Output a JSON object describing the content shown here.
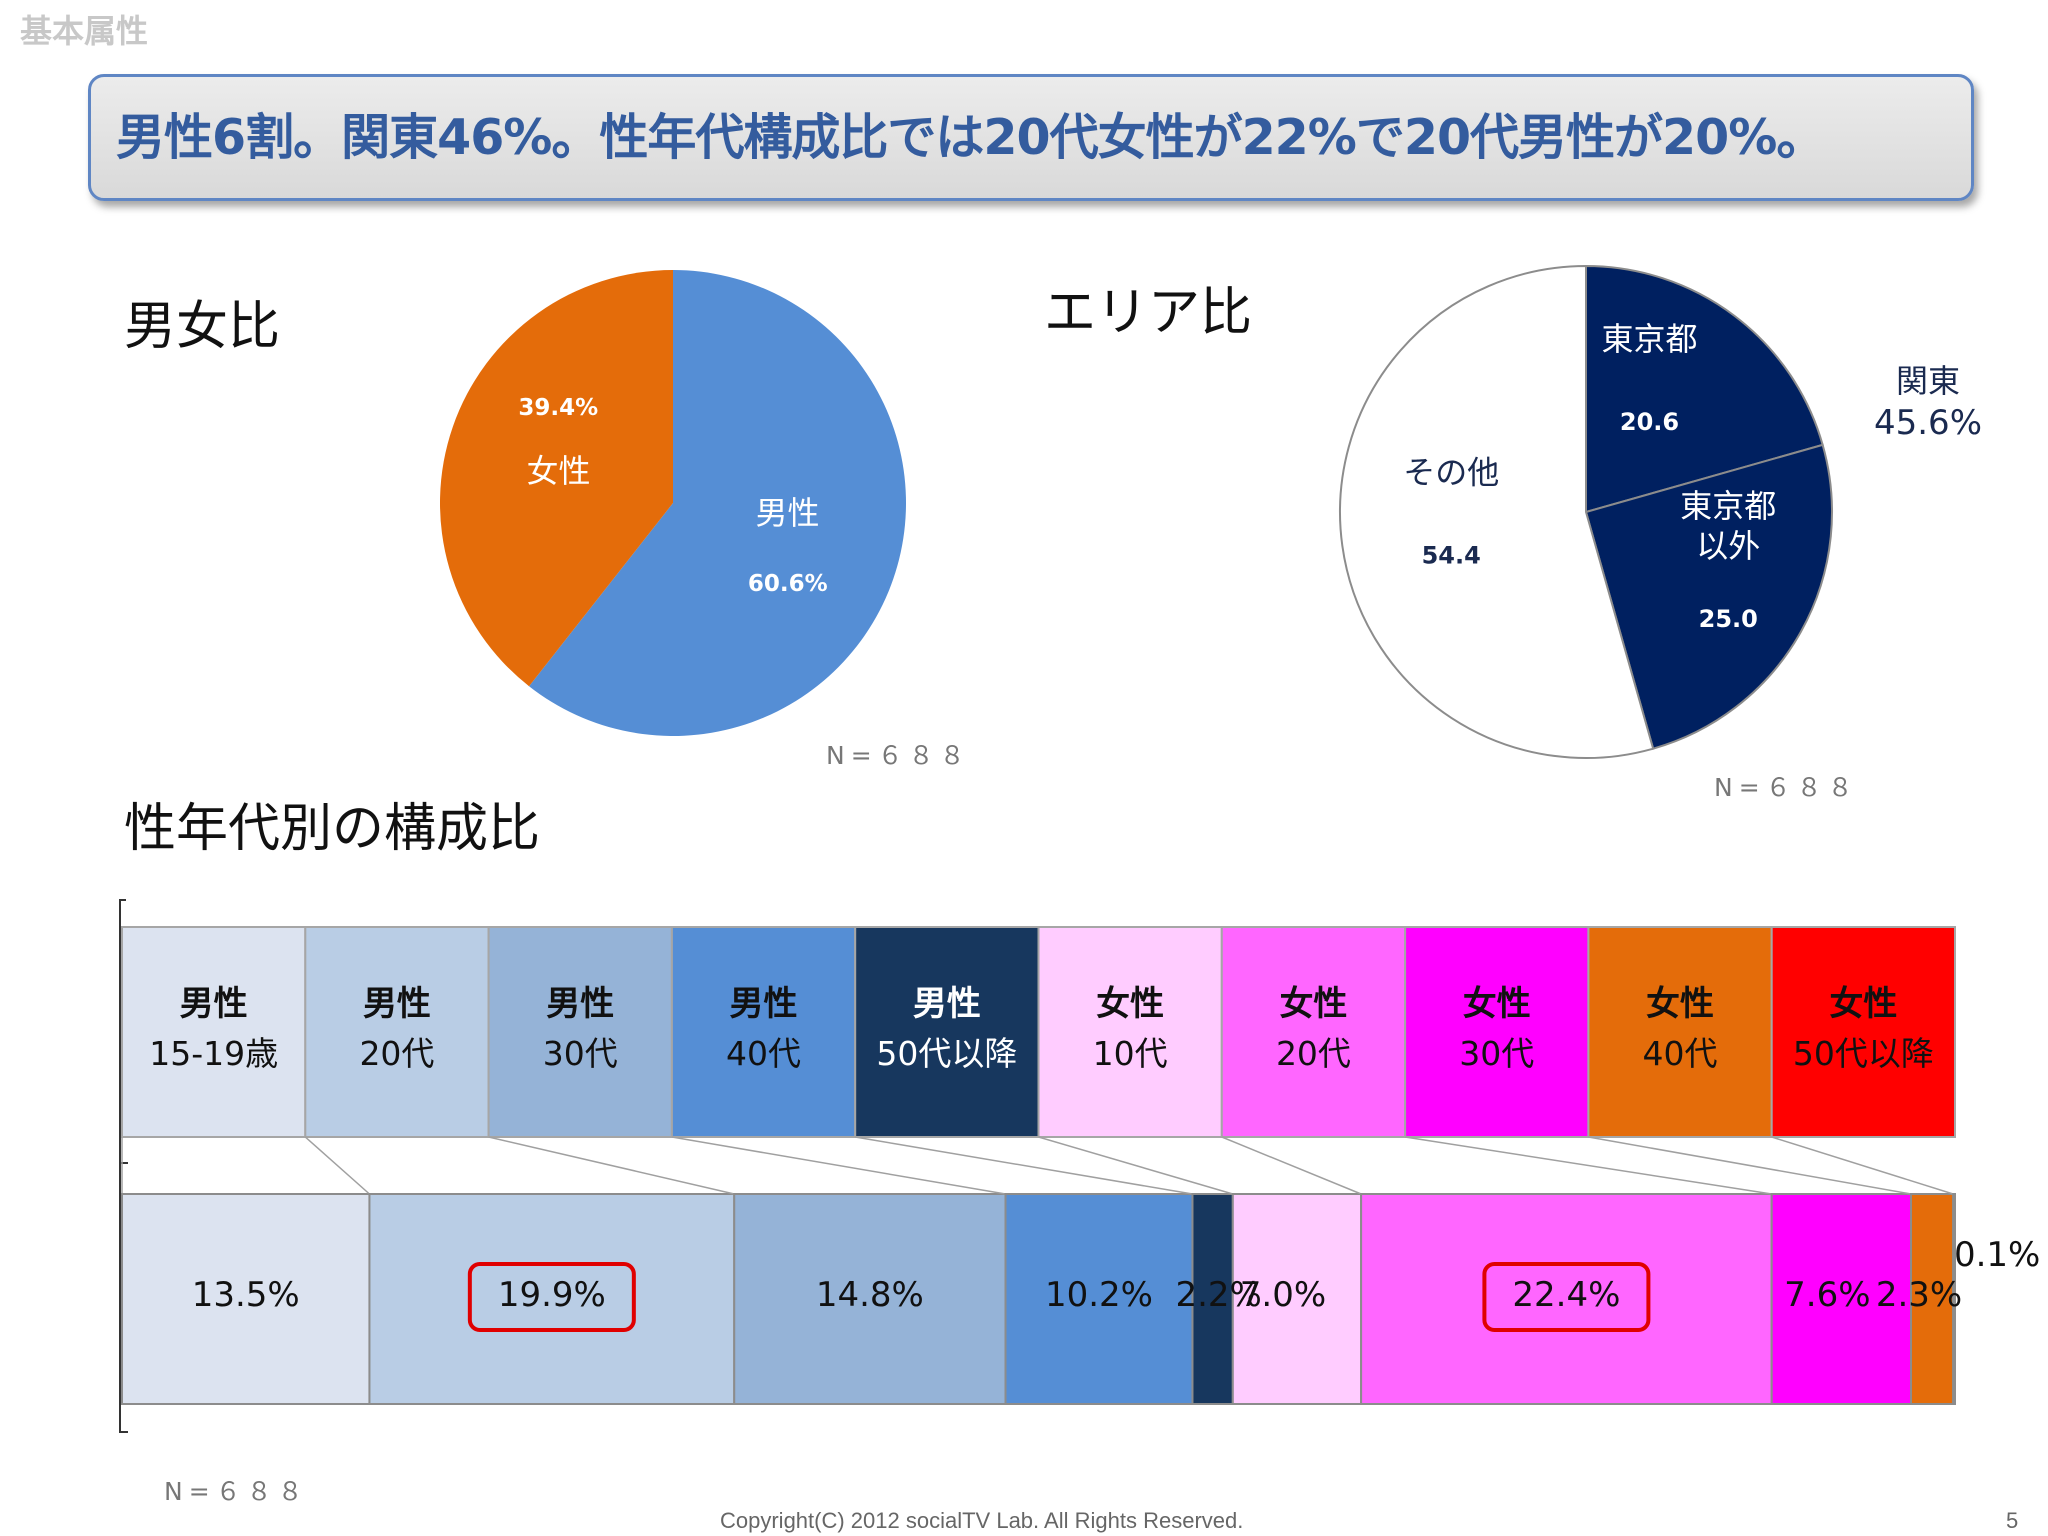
{
  "header": {
    "label": "基本属性"
  },
  "headline": "男性6割。関東46%。性年代構成比では20代女性が22%で20代男性が20%。",
  "sections": {
    "gender_title": "男女比",
    "area_title": "エリア比",
    "composition_title": "性年代別の構成比"
  },
  "footer": {
    "copyright": "Copyright(C) 2012 socialTV Lab. All Rights Reserved.",
    "page": "5"
  },
  "colors": {
    "male": "#558ed5",
    "female": "#e46c0a",
    "navy": "#002060",
    "pink_light": "#ffccff",
    "pink": "#ff66ff",
    "magenta": "#ff00ff",
    "orange": "#e46c0a",
    "red": "#ff0000",
    "highlight": "#e00000"
  },
  "chart_data": [
    {
      "type": "pie",
      "title": "男女比",
      "slices": [
        {
          "label": "男性",
          "value": 60.6,
          "value_label": "60.6%",
          "color": "#558ed5"
        },
        {
          "label": "女性",
          "value": 39.4,
          "value_label": "39.4%",
          "color": "#e46c0a"
        }
      ],
      "note": "N=６８８"
    },
    {
      "type": "pie",
      "title": "エリア比",
      "slices": [
        {
          "label": "東京都",
          "value": 20.6,
          "value_label": "20.6",
          "color": "#002060"
        },
        {
          "label": "東京都\n以外",
          "value": 25.0,
          "value_label": "25.0",
          "color": "#002060"
        },
        {
          "label": "その他",
          "value": 54.4,
          "value_label": "54.4",
          "color": "#ffffff"
        }
      ],
      "annotation": {
        "line1": "関東",
        "line2": "45.6%"
      },
      "note": "N=６８８"
    },
    {
      "type": "bar",
      "orientation": "horizontal-stacked-100",
      "title": "性年代別の構成比",
      "categories": [
        {
          "line1": "男性",
          "line2": "15-19歳",
          "color": "#dce3f0",
          "text_color": "#111111"
        },
        {
          "line1": "男性",
          "line2": "20代",
          "color": "#b9cde5",
          "text_color": "#111111"
        },
        {
          "line1": "男性",
          "line2": "30代",
          "color": "#95b3d7",
          "text_color": "#111111"
        },
        {
          "line1": "男性",
          "line2": "40代",
          "color": "#558ed5",
          "text_color": "#111111"
        },
        {
          "line1": "男性",
          "line2": "50代以降",
          "color": "#17375e",
          "text_color": "#ffffff"
        },
        {
          "line1": "女性",
          "line2": "10代",
          "color": "#ffccff",
          "text_color": "#111111"
        },
        {
          "line1": "女性",
          "line2": "20代",
          "color": "#ff66ff",
          "text_color": "#111111"
        },
        {
          "line1": "女性",
          "line2": "30代",
          "color": "#ff00ff",
          "text_color": "#111111"
        },
        {
          "line1": "女性",
          "line2": "40代",
          "color": "#e46c0a",
          "text_color": "#111111"
        },
        {
          "line1": "女性",
          "line2": "50代以降",
          "color": "#ff0000",
          "text_color": "#111111"
        }
      ],
      "values": [
        13.5,
        19.9,
        14.8,
        10.2,
        2.2,
        7.0,
        22.4,
        7.6,
        2.3,
        0.1
      ],
      "value_labels": [
        "13.5%",
        "19.9%",
        "14.8%",
        "10.2%",
        "2.2%",
        "7.0%",
        "22.4%",
        "7.6%",
        "2.3%",
        "0.1%"
      ],
      "highlighted": [
        "19.9%",
        "22.4%"
      ],
      "note": "N=６８８"
    }
  ]
}
